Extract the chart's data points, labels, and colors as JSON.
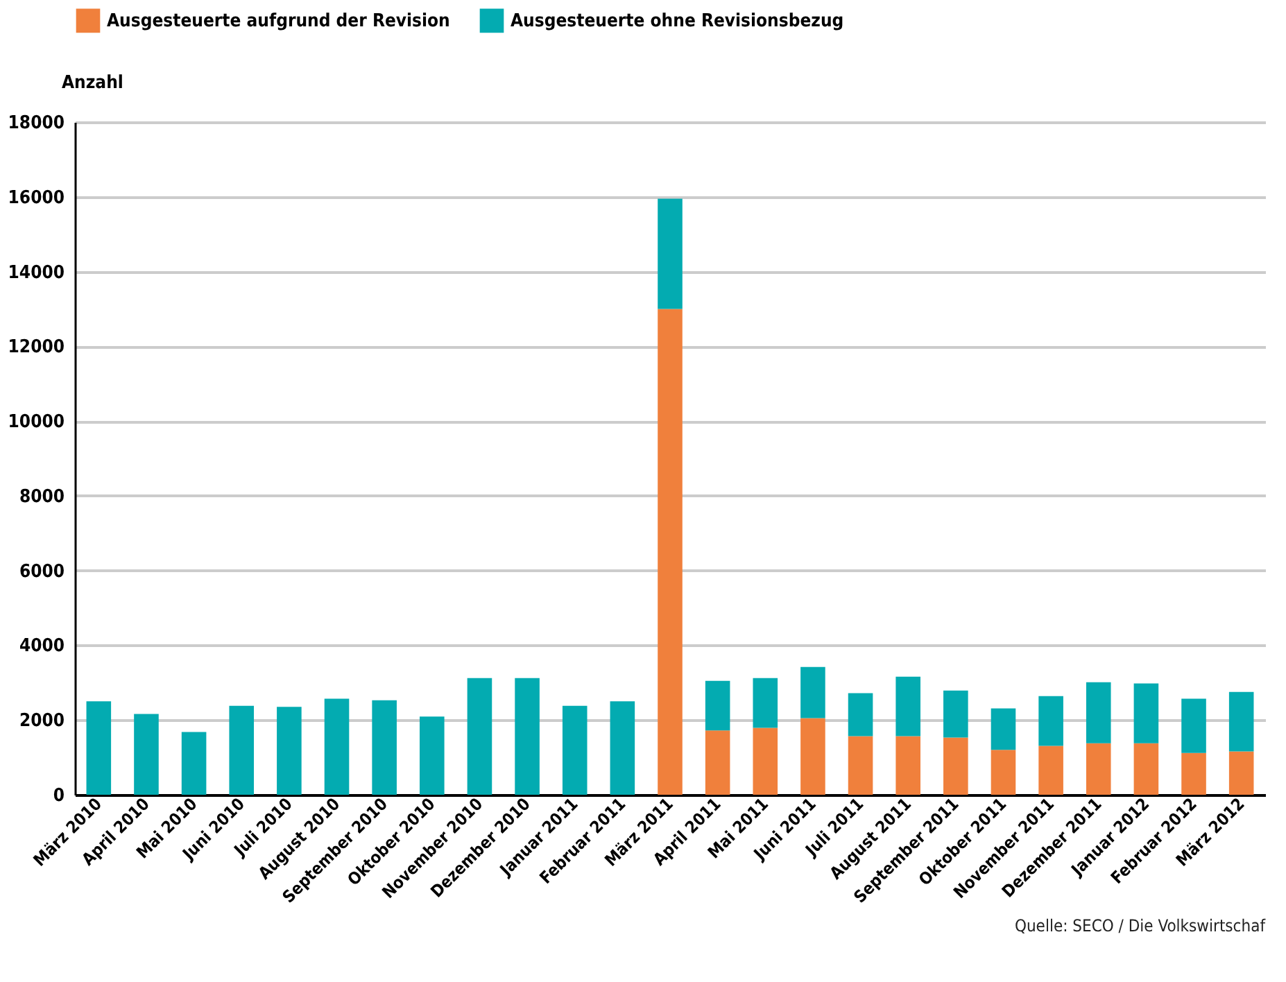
{
  "chart_data": {
    "type": "bar",
    "stacked": true,
    "ylabel": "Anzahl",
    "categories": [
      "März 2010",
      "April 2010",
      "Mai 2010",
      "Juni 2010",
      "Juli 2010",
      "August 2010",
      "September 2010",
      "Oktober 2010",
      "November 2010",
      "Dezember 2010",
      "Januar 2011",
      "Februar 2011",
      "März 2011",
      "April 2011",
      "Mai 2011",
      "Juni 2011",
      "Juli 2011",
      "August 2011",
      "September 2011",
      "Oktober 2011",
      "November 2011",
      "Dezember 2011",
      "Januar 2012",
      "Februar 2012",
      "März 2012"
    ],
    "series": [
      {
        "name": "Ausgesteuerte aufgrund der Revision",
        "color": "#f0803c",
        "values": [
          null,
          null,
          null,
          null,
          null,
          null,
          null,
          null,
          null,
          null,
          null,
          null,
          13000,
          1720,
          1790,
          2050,
          1570,
          1570,
          1530,
          1200,
          1310,
          1380,
          1380,
          1120,
          1160
        ]
      },
      {
        "name": "Ausgesteuerte ohne Revisionsbezug",
        "color": "#03abb1",
        "values": [
          2500,
          2160,
          1680,
          2380,
          2350,
          2570,
          2530,
          2090,
          3120,
          3120,
          2380,
          2500,
          2950,
          1330,
          1330,
          1370,
          1150,
          1590,
          1260,
          1110,
          1330,
          1630,
          1600,
          1450,
          1590
        ]
      }
    ],
    "ylim": [
      0,
      18000
    ],
    "yticks": [
      0,
      2000,
      4000,
      6000,
      8000,
      10000,
      12000,
      14000,
      16000,
      18000
    ],
    "grid": "y",
    "legend": "top left",
    "annotations": [
      "Quelle: SECO / Die Volkswirtschaf"
    ]
  }
}
